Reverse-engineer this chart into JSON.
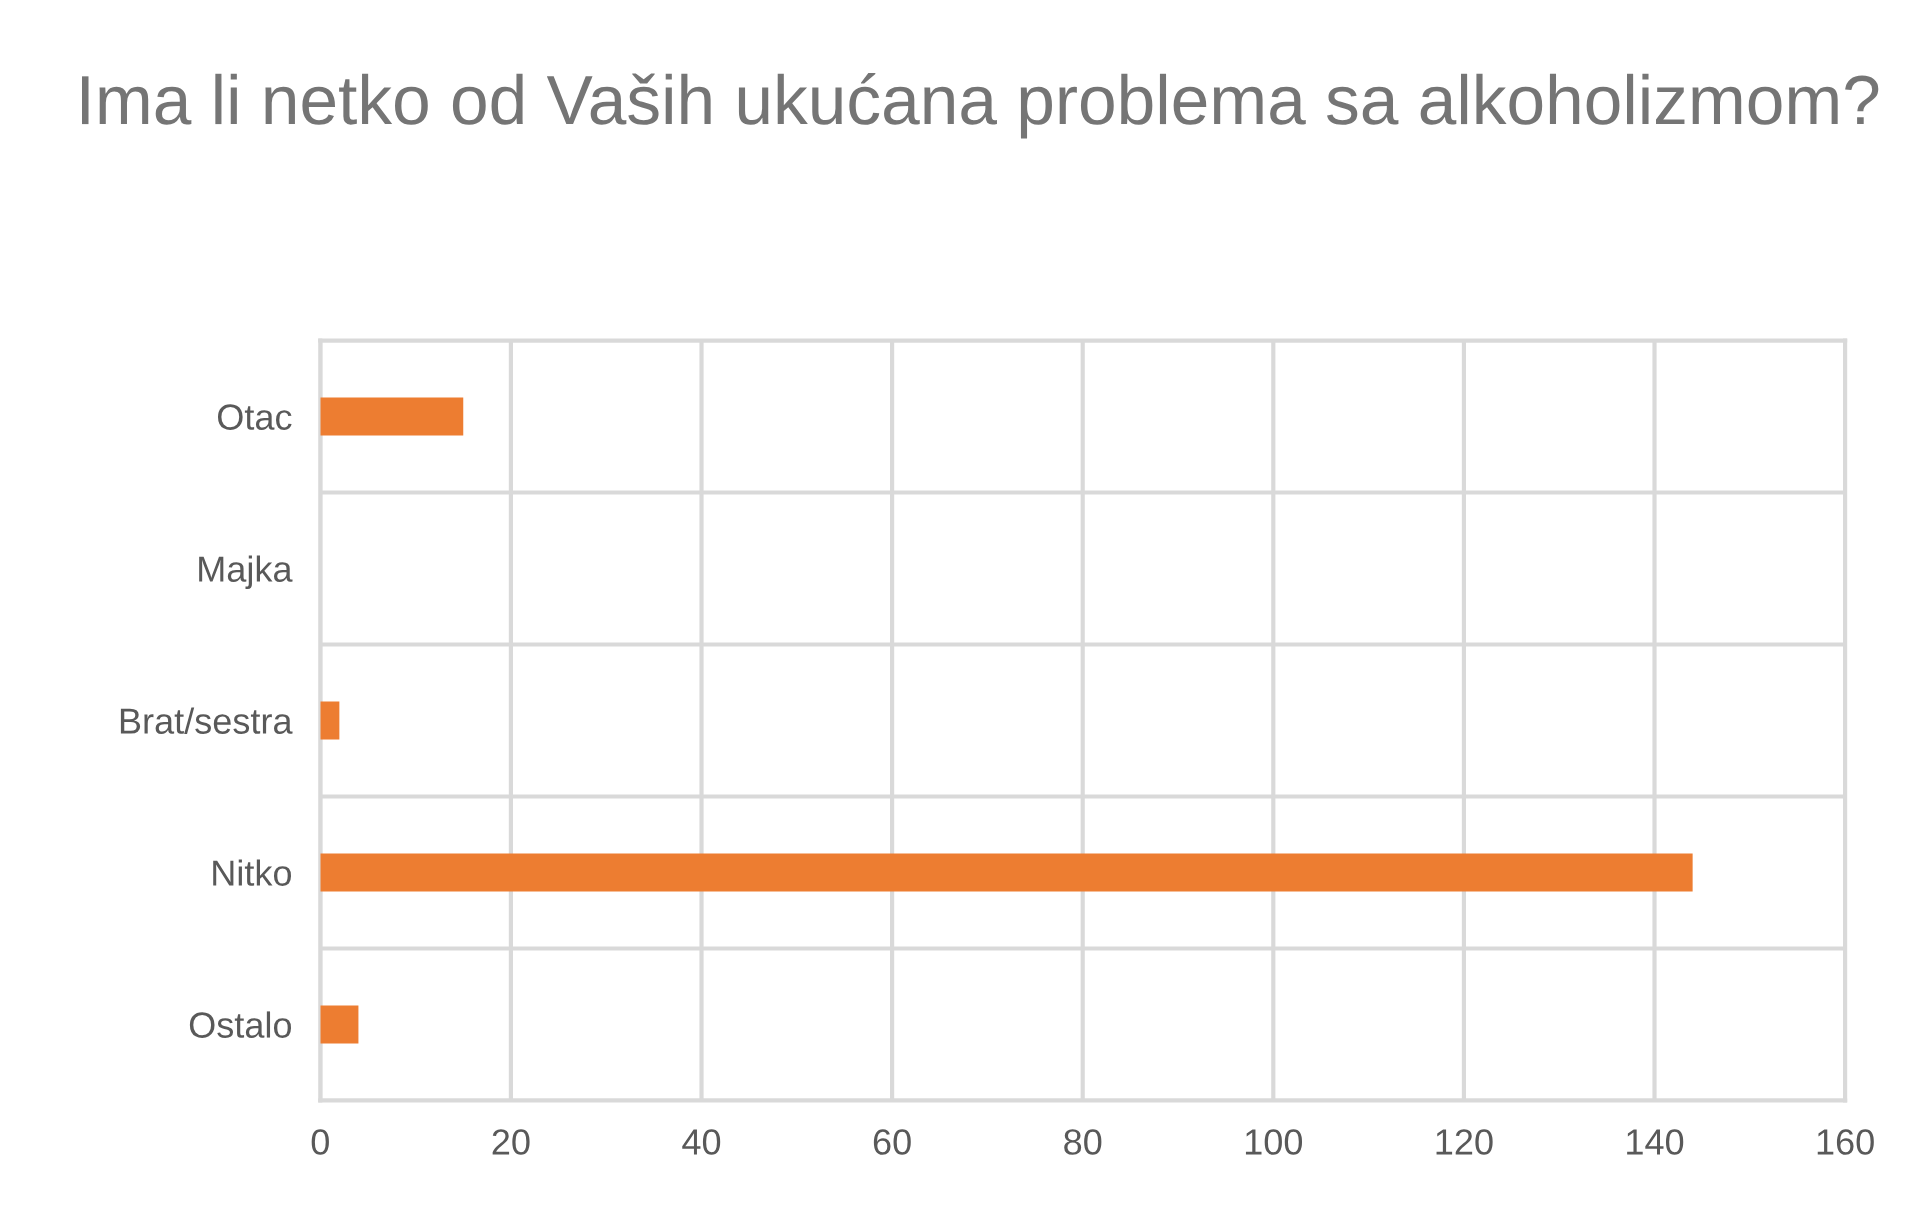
{
  "chart_data": {
    "type": "bar",
    "orientation": "horizontal",
    "title": "Ima li netko od Vaših ukućana problema sa alkoholizmom?",
    "categories": [
      "Otac",
      "Majka",
      "Brat/sestra",
      "Nitko",
      "Ostalo"
    ],
    "values": [
      15,
      0,
      2,
      144,
      4
    ],
    "color": "#ed7d31",
    "xlim": [
      0,
      160
    ],
    "xticks": [
      0,
      20,
      40,
      60,
      80,
      100,
      120,
      140,
      160
    ],
    "grid": true
  }
}
